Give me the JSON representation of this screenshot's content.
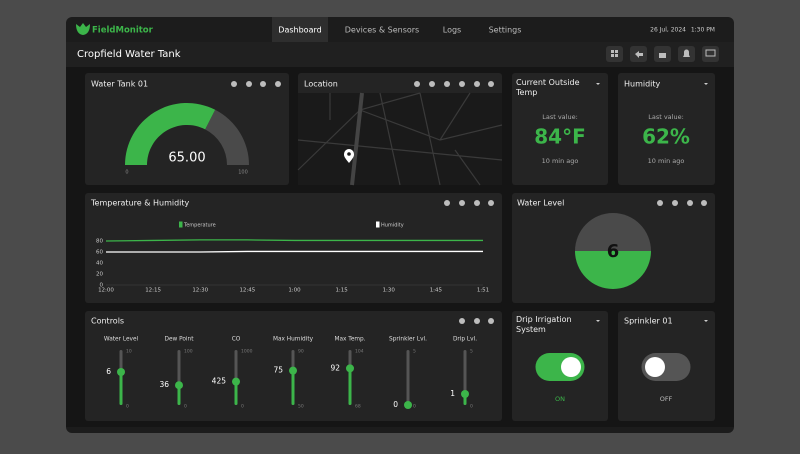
{
  "nav": {
    "logo": "FieldMonitor",
    "tabs": [
      "Dashboard",
      "Devices & Sensors",
      "Logs",
      "Settings"
    ],
    "date": "26 Jul, 2024",
    "time": "1:30 PM"
  },
  "page_title": "Cropfield Water Tank",
  "water_tank": {
    "title": "Water Tank 01",
    "value": 65,
    "value_label": "65.00",
    "min": 0,
    "max": 100
  },
  "location": {
    "title": "Location"
  },
  "outside_temp": {
    "title": "Current Outside Temp",
    "caption": "Last value:",
    "value": "84°F",
    "age": "10 min ago"
  },
  "humidity": {
    "title": "Humidity",
    "caption": "Last value:",
    "value": "62%",
    "age": "10 min ago"
  },
  "chart_data": {
    "type": "line",
    "title": "Temperature & Humidity",
    "categories": [
      "12:00",
      "12:15",
      "12:30",
      "12:45",
      "1:00",
      "1:15",
      "1:30",
      "1:45",
      "1:51"
    ],
    "series": [
      {
        "name": "Temperature",
        "color": "#3cb54a",
        "values": [
          80,
          81,
          82,
          82,
          81,
          81,
          81,
          81,
          81
        ]
      },
      {
        "name": "Humidity",
        "color": "#ffffff",
        "values": [
          60,
          60,
          60,
          61,
          61,
          61,
          61,
          61,
          61
        ]
      }
    ],
    "ylim": [
      0,
      90
    ],
    "yticks": [
      0,
      20,
      40,
      60,
      80
    ],
    "grid": false
  },
  "water_level": {
    "title": "Water Level",
    "value": 6
  },
  "controls": {
    "title": "Controls",
    "sliders": [
      {
        "label": "Water Level",
        "min": 0,
        "max": 10,
        "value": 6
      },
      {
        "label": "Dew Point",
        "min": 0,
        "max": 100,
        "value": 36
      },
      {
        "label": "CO",
        "min": 0,
        "max": 1000,
        "value": 425
      },
      {
        "label": "Max Humidity",
        "min": 50,
        "max": 90,
        "value": 75
      },
      {
        "label": "Max Temp.",
        "min": 68,
        "max": 104,
        "value": 92
      },
      {
        "label": "Sprinkler Lvl.",
        "min": 0,
        "max": 5,
        "value": 0
      },
      {
        "label": "Drip Lvl.",
        "min": 0,
        "max": 5,
        "value": 1
      }
    ]
  },
  "drip": {
    "title": "Drip Irrigation System",
    "state": "ON",
    "on": true
  },
  "sprinkler": {
    "title": "Sprinkler 01",
    "state": "OFF",
    "on": false
  }
}
